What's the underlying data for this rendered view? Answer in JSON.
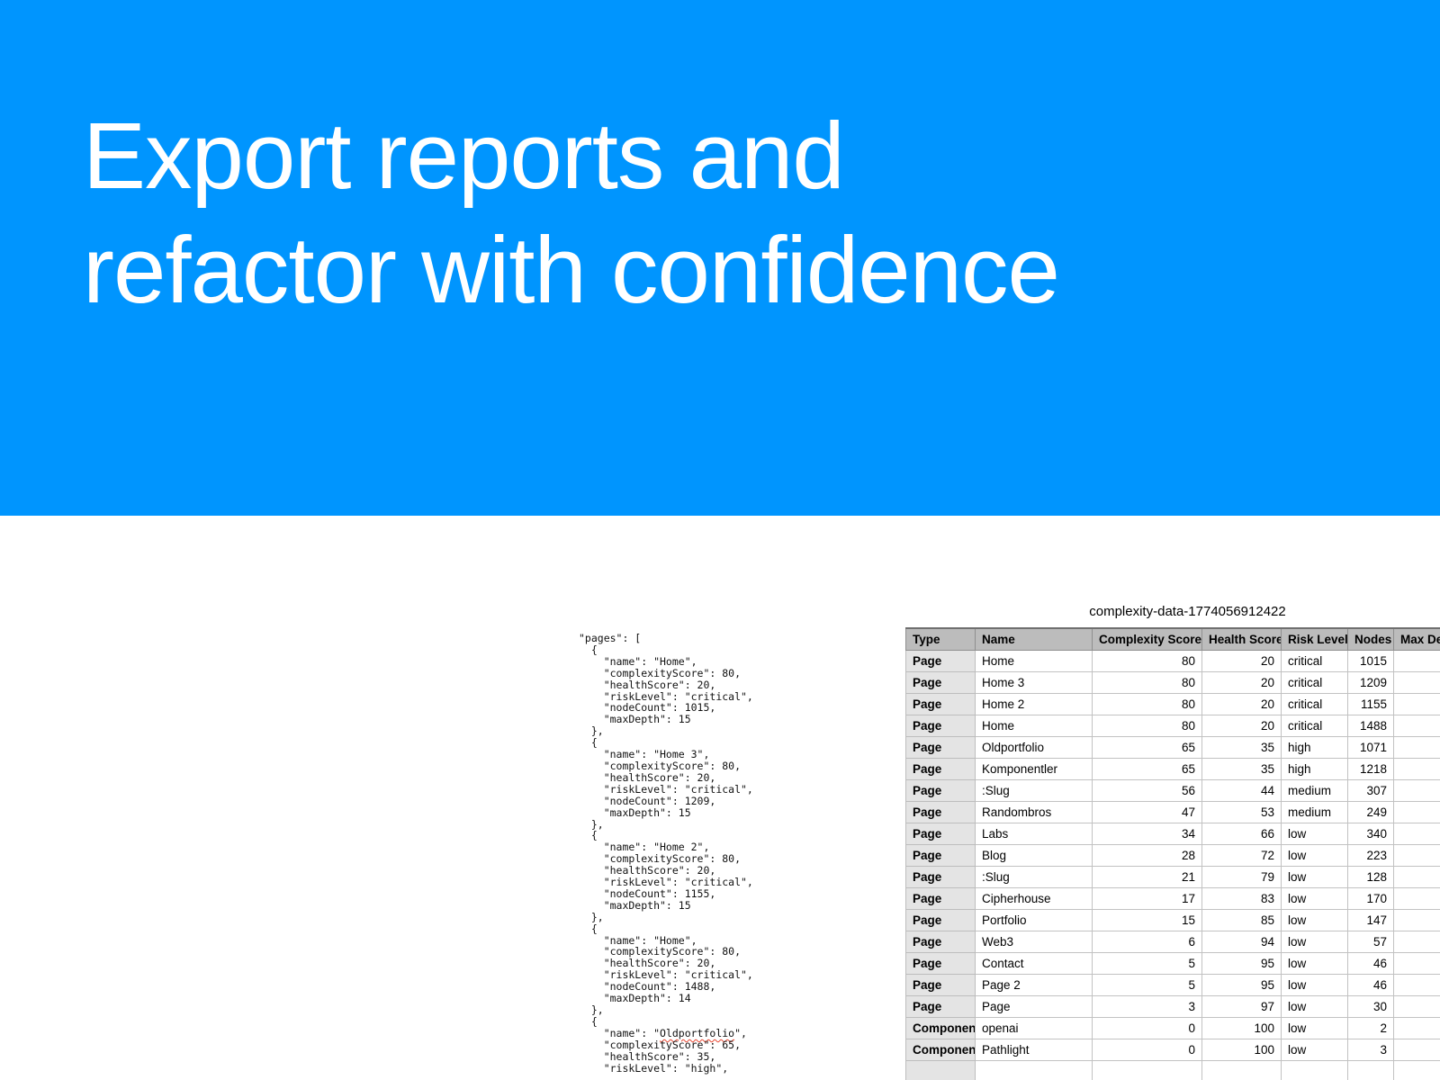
{
  "hero": {
    "title_line1": "Export reports and",
    "title_line2": "refactor with confidence",
    "background_color": "#0095FE",
    "text_color": "#FFFFFF"
  },
  "code_panel": {
    "language": "json",
    "spellcheck_flagged_word": "Oldportfolio",
    "spellcheck_color": "#E8442F",
    "lines": [
      "\"pages\": [",
      "  {",
      "    \"name\": \"Home\",",
      "    \"complexityScore\": 80,",
      "    \"healthScore\": 20,",
      "    \"riskLevel\": \"critical\",",
      "    \"nodeCount\": 1015,",
      "    \"maxDepth\": 15",
      "  },",
      "  {",
      "    \"name\": \"Home 3\",",
      "    \"complexityScore\": 80,",
      "    \"healthScore\": 20,",
      "    \"riskLevel\": \"critical\",",
      "    \"nodeCount\": 1209,",
      "    \"maxDepth\": 15",
      "  },",
      "  {",
      "    \"name\": \"Home 2\",",
      "    \"complexityScore\": 80,",
      "    \"healthScore\": 20,",
      "    \"riskLevel\": \"critical\",",
      "    \"nodeCount\": 1155,",
      "    \"maxDepth\": 15",
      "  },",
      "  {",
      "    \"name\": \"Home\",",
      "    \"complexityScore\": 80,",
      "    \"healthScore\": 20,",
      "    \"riskLevel\": \"critical\",",
      "    \"nodeCount\": 1488,",
      "    \"maxDepth\": 14",
      "  },",
      "  {",
      "    \"name\": \"Oldportfolio\",",
      "    \"complexityScore\": 65,",
      "    \"healthScore\": 35,",
      "    \"riskLevel\": \"high\","
    ]
  },
  "spreadsheet": {
    "title": "complexity-data-1774056912422",
    "columns": [
      {
        "label": "Type",
        "align": "left"
      },
      {
        "label": "Name",
        "align": "left"
      },
      {
        "label": "Complexity Score",
        "align": "right"
      },
      {
        "label": "Health Score",
        "align": "right"
      },
      {
        "label": "Risk Level",
        "align": "left"
      },
      {
        "label": "Nodes",
        "align": "right"
      },
      {
        "label": "Max Dep",
        "align": "left"
      }
    ],
    "rows": [
      [
        "Page",
        "Home",
        80,
        20,
        "critical",
        1015,
        ""
      ],
      [
        "Page",
        "Home 3",
        80,
        20,
        "critical",
        1209,
        ""
      ],
      [
        "Page",
        "Home 2",
        80,
        20,
        "critical",
        1155,
        ""
      ],
      [
        "Page",
        "Home",
        80,
        20,
        "critical",
        1488,
        ""
      ],
      [
        "Page",
        "Oldportfolio",
        65,
        35,
        "high",
        1071,
        ""
      ],
      [
        "Page",
        "Komponentler",
        65,
        35,
        "high",
        1218,
        ""
      ],
      [
        "Page",
        ":Slug",
        56,
        44,
        "medium",
        307,
        ""
      ],
      [
        "Page",
        "Randombros",
        47,
        53,
        "medium",
        249,
        ""
      ],
      [
        "Page",
        "Labs",
        34,
        66,
        "low",
        340,
        ""
      ],
      [
        "Page",
        "Blog",
        28,
        72,
        "low",
        223,
        ""
      ],
      [
        "Page",
        ":Slug",
        21,
        79,
        "low",
        128,
        ""
      ],
      [
        "Page",
        "Cipherhouse",
        17,
        83,
        "low",
        170,
        ""
      ],
      [
        "Page",
        "Portfolio",
        15,
        85,
        "low",
        147,
        ""
      ],
      [
        "Page",
        "Web3",
        6,
        94,
        "low",
        57,
        ""
      ],
      [
        "Page",
        "Contact",
        5,
        95,
        "low",
        46,
        ""
      ],
      [
        "Page",
        "Page 2",
        5,
        95,
        "low",
        46,
        ""
      ],
      [
        "Page",
        "Page",
        3,
        97,
        "low",
        30,
        ""
      ],
      [
        "Component",
        "openai",
        0,
        100,
        "low",
        2,
        ""
      ],
      [
        "Component",
        "Pathlight",
        0,
        100,
        "low",
        3,
        ""
      ]
    ]
  }
}
